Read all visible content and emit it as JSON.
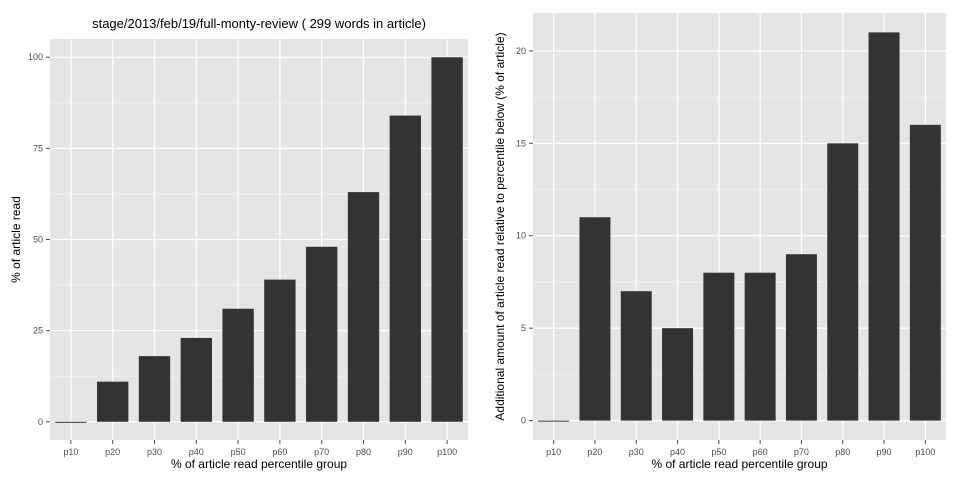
{
  "colors": {
    "panel": "#e5e5e5",
    "grid_major": "#ffffff",
    "grid_minor": "#f2f2f2",
    "bar": "#333333"
  },
  "chart_data": [
    {
      "type": "bar",
      "title": "stage/2013/feb/19/full-monty-review ( 299 words in article)",
      "xlabel": "% of article read percentile group",
      "ylabel": "% of article read",
      "categories": [
        "p10",
        "p20",
        "p30",
        "p40",
        "p50",
        "p60",
        "p70",
        "p80",
        "p90",
        "p100"
      ],
      "values": [
        0,
        11,
        18,
        23,
        31,
        39,
        48,
        63,
        84,
        100
      ],
      "ylim": [
        -5,
        105
      ],
      "yticks": [
        0,
        25,
        50,
        75,
        100
      ],
      "grid": true
    },
    {
      "type": "bar",
      "title": "",
      "xlabel": "% of article read percentile group",
      "ylabel": "Additional amount of article read relative to percentile below (% of article)",
      "categories": [
        "p10",
        "p20",
        "p30",
        "p40",
        "p50",
        "p60",
        "p70",
        "p80",
        "p90",
        "p100"
      ],
      "values": [
        0,
        11,
        7,
        5,
        8,
        8,
        9,
        15,
        21,
        16
      ],
      "ylim": [
        -1.05,
        22.05
      ],
      "yticks": [
        0,
        5,
        10,
        15,
        20
      ],
      "grid": true
    }
  ]
}
